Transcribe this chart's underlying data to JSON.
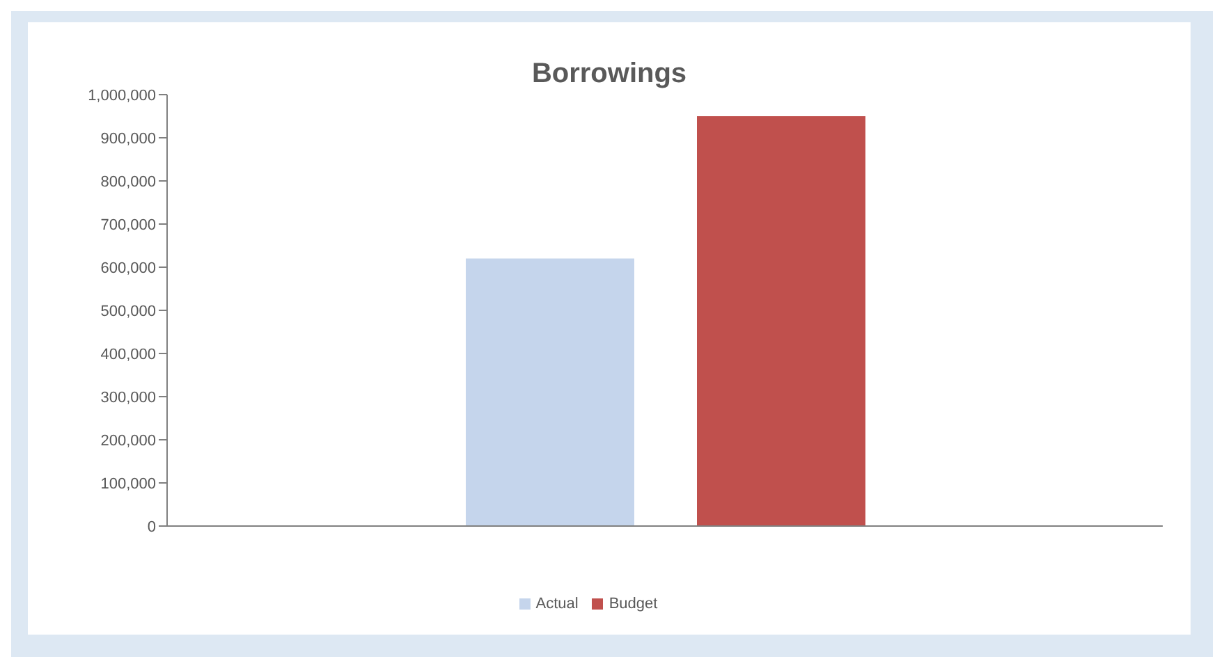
{
  "chart_data": {
    "type": "bar",
    "title": "Borrowings",
    "categories": [
      null
    ],
    "series": [
      {
        "name": "Actual",
        "color": "#c5d5ec",
        "values": [
          620000
        ]
      },
      {
        "name": "Budget",
        "color": "#c0504d",
        "values": [
          950000
        ]
      }
    ],
    "ylim": [
      0,
      1000000
    ],
    "yticks": [
      {
        "value": 0,
        "label": "0"
      },
      {
        "value": 100000,
        "label": "100,000"
      },
      {
        "value": 200000,
        "label": "200,000"
      },
      {
        "value": 300000,
        "label": "300,000"
      },
      {
        "value": 400000,
        "label": "400,000"
      },
      {
        "value": 500000,
        "label": "500,000"
      },
      {
        "value": 600000,
        "label": "600,000"
      },
      {
        "value": 700000,
        "label": "700,000"
      },
      {
        "value": 800000,
        "label": "800,000"
      },
      {
        "value": 900000,
        "label": "900,000"
      },
      {
        "value": 1000000,
        "label": "1,000,000"
      }
    ],
    "grid": false,
    "legend": "bottom"
  }
}
